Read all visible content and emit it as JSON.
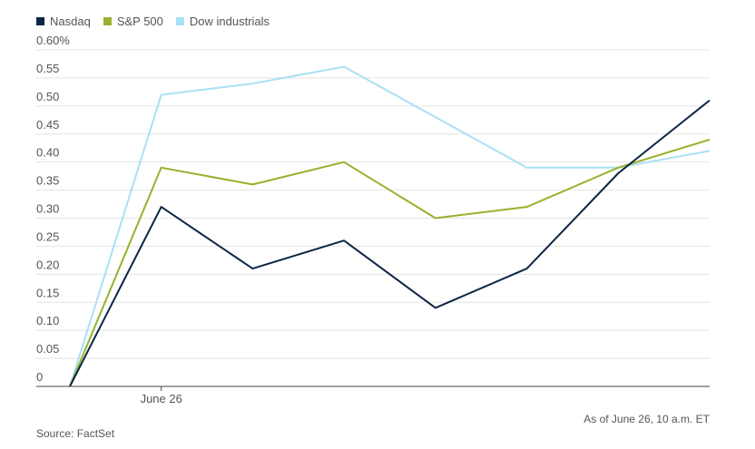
{
  "chart_data": {
    "type": "line",
    "x": [
      "",
      "June 26",
      "",
      "",
      "",
      "",
      "",
      ""
    ],
    "series": [
      {
        "name": "Nasdaq",
        "color": "#0c2545",
        "values": [
          0,
          0.32,
          0.21,
          0.26,
          0.14,
          0.21,
          0.38,
          0.51
        ]
      },
      {
        "name": "S&P 500",
        "color": "#97b12c",
        "values": [
          0,
          0.39,
          0.36,
          0.4,
          0.3,
          0.32,
          0.39,
          0.44
        ]
      },
      {
        "name": "Dow industrials",
        "color": "#a9e0f2",
        "values": [
          0,
          0.52,
          0.54,
          0.57,
          0.48,
          0.39,
          0.39,
          0.42
        ]
      }
    ],
    "ylim": [
      0,
      0.6
    ],
    "yticks": [
      "0",
      "0.05",
      "0.10",
      "0.15",
      "0.20",
      "0.25",
      "0.30",
      "0.35",
      "0.40",
      "0.45",
      "0.50",
      "0.55",
      "0.60%"
    ],
    "xtick_labels": [
      {
        "index": 1,
        "label": "June 26"
      }
    ],
    "grid": true,
    "legend_position": "top-left"
  },
  "notes": {
    "asof": "As of June 26, 10 a.m. ET",
    "source": "Source: FactSet"
  }
}
